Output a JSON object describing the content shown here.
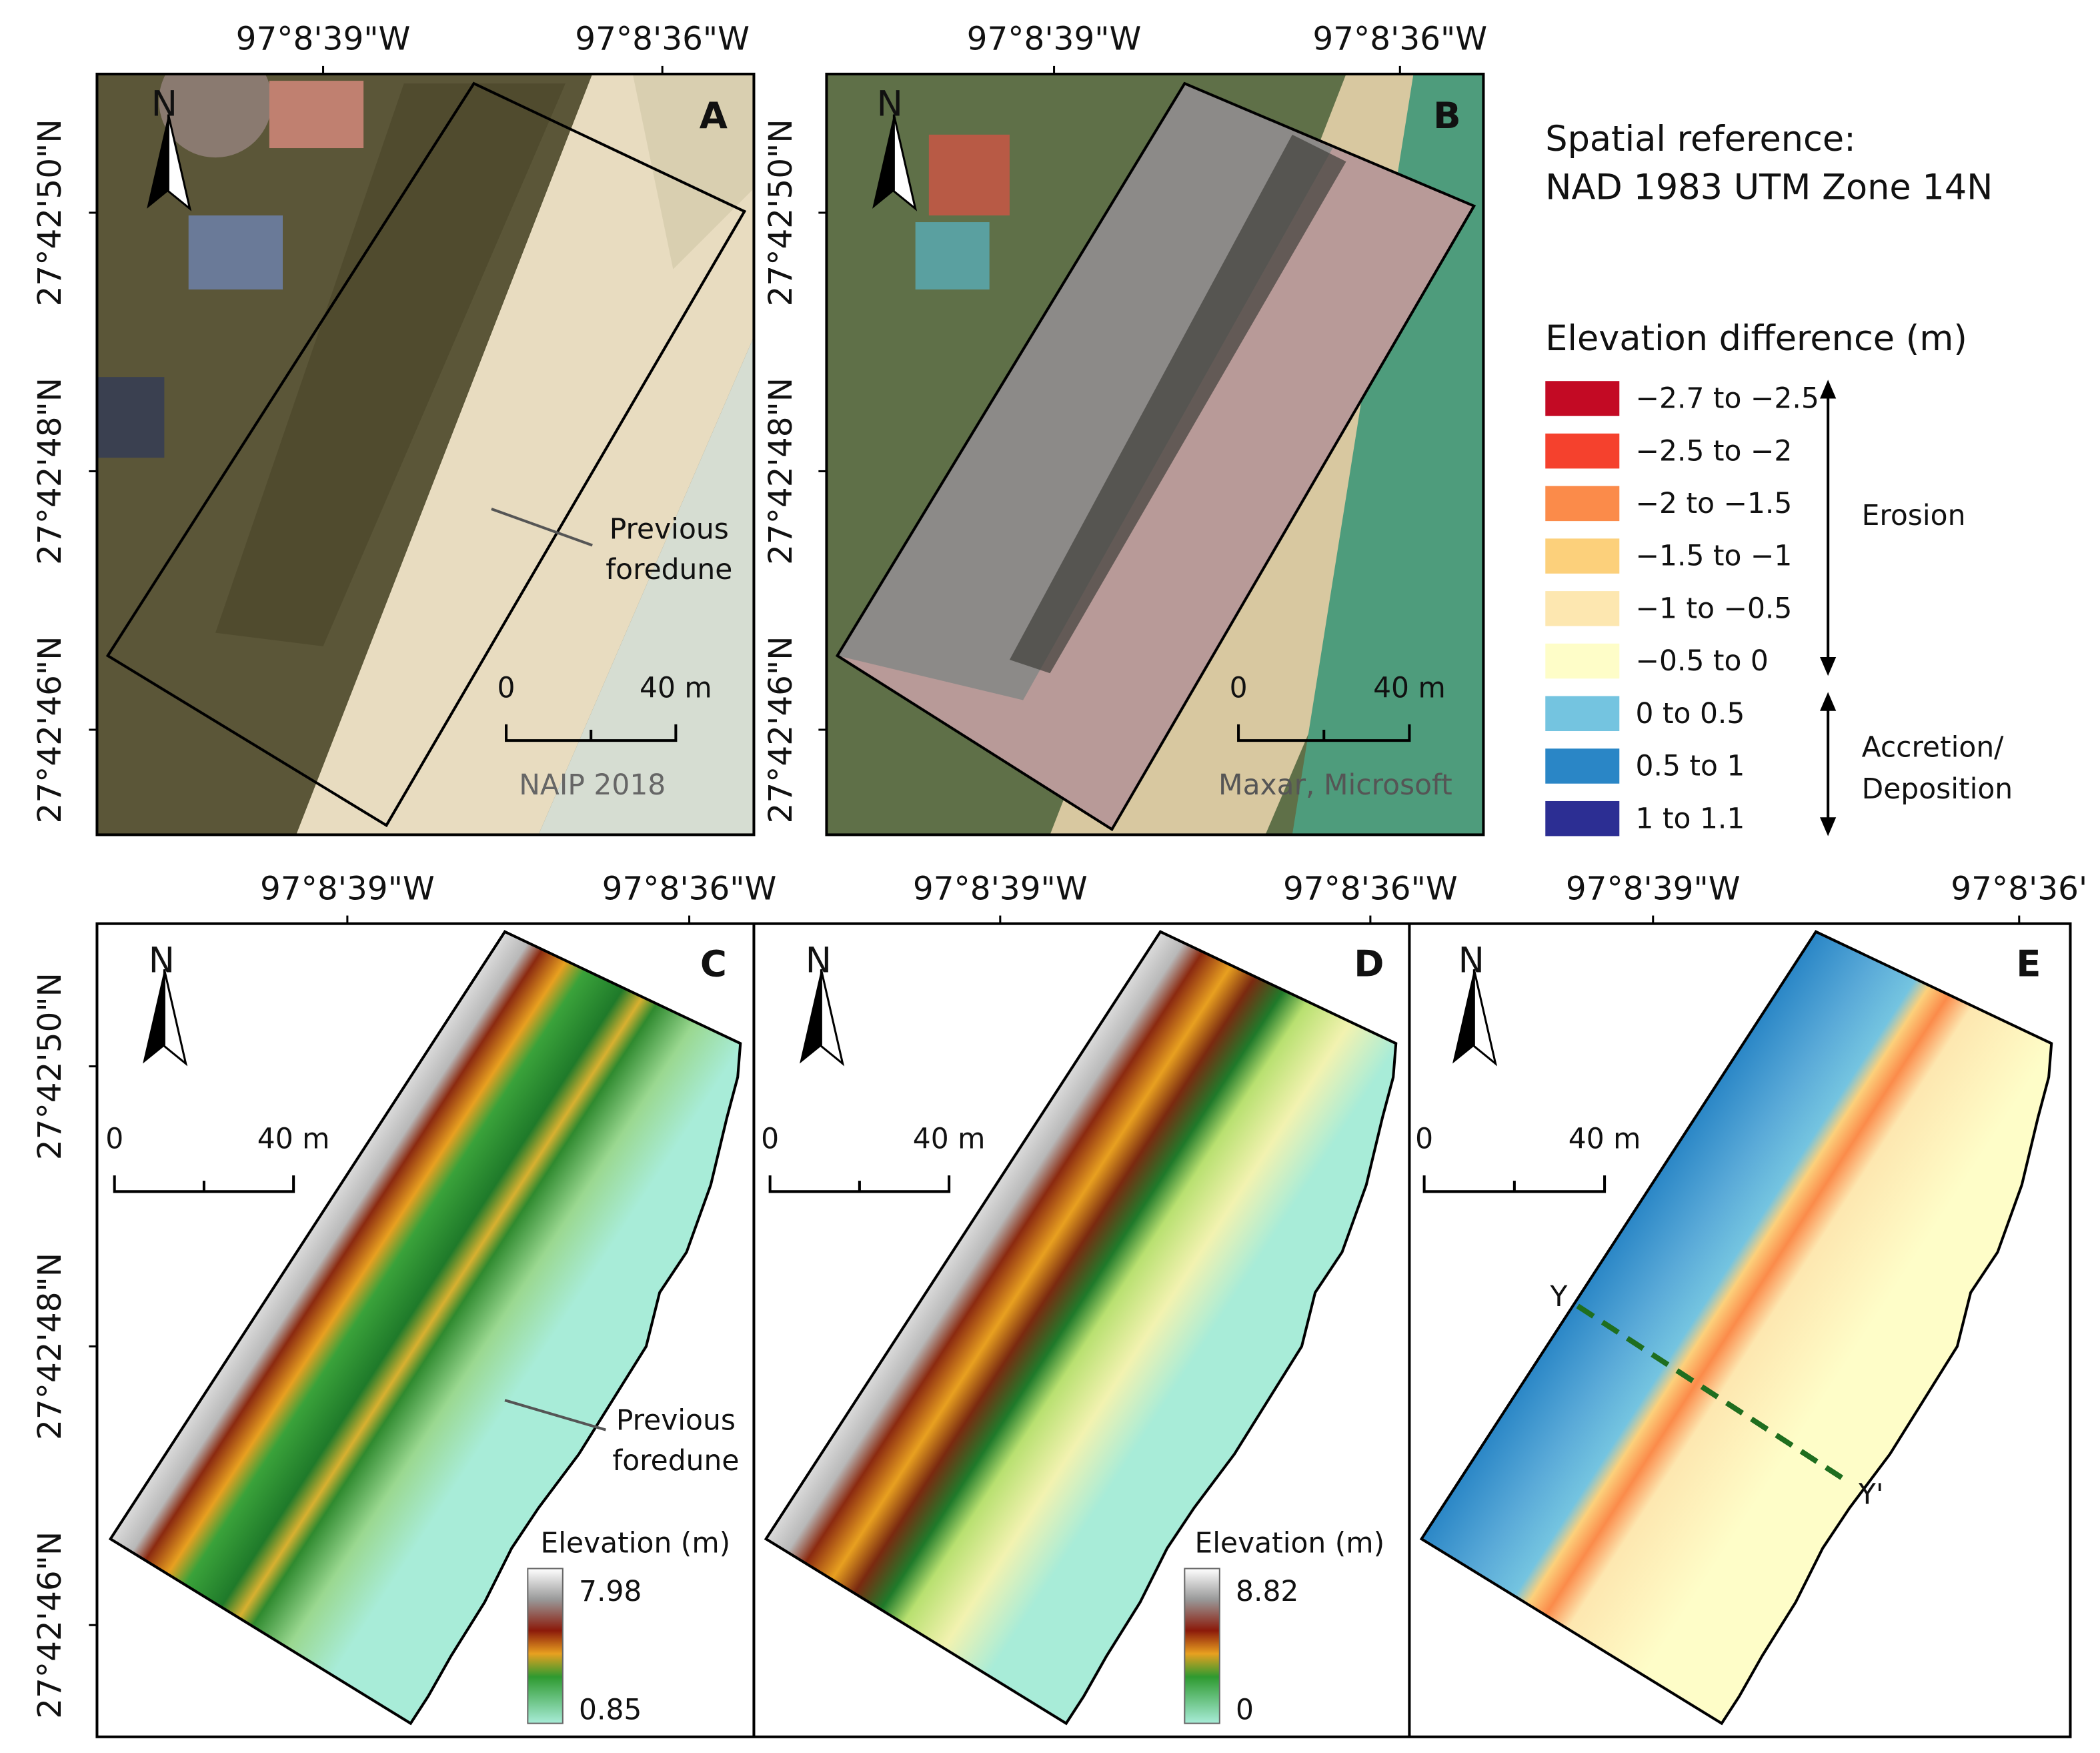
{
  "panel_a": {
    "letter": "A",
    "lon": [
      "97°8'39\"W",
      "97°8'36\"W"
    ],
    "lat": [
      "27°42'50\"N",
      "27°42'48\"N",
      "27°42'46\"N"
    ],
    "north": "N",
    "scale_start": 0,
    "scale_end": "40 m",
    "annotation": [
      "Previous",
      "foredune"
    ],
    "source": "NAIP 2018"
  },
  "panel_b": {
    "letter": "B",
    "lon": [
      "97°8'39\"W",
      "97°8'36\"W"
    ],
    "lat": [
      "27°42'50\"N",
      "27°42'48\"N",
      "27°42'46\"N"
    ],
    "north": "N",
    "scale_start": 0,
    "scale_end": "40 m",
    "source": "Maxar, Microsoft"
  },
  "spatial_reference": [
    "Spatial reference:",
    "NAD 1983 UTM Zone 14N"
  ],
  "legend": {
    "title": "Elevation difference (m)",
    "items": [
      {
        "label": "−2.7 to −2.5",
        "color": "#c30a24"
      },
      {
        "label": "−2.5 to −2",
        "color": "#f5412d"
      },
      {
        "label": "−2 to −1.5",
        "color": "#fb8b4a"
      },
      {
        "label": "−1.5 to −1",
        "color": "#fcd07b"
      },
      {
        "label": "−1 to −0.5",
        "color": "#fde7b0"
      },
      {
        "label": "−0.5 to 0",
        "color": "#fefdc8"
      },
      {
        "label": "0 to 0.5",
        "color": "#74c4e0"
      },
      {
        "label": "0.5 to 1",
        "color": "#2a86c6"
      },
      {
        "label": "1 to 1.1",
        "color": "#2c2e93"
      }
    ],
    "erosion": "Erosion",
    "accretion": [
      "Accretion/",
      "Deposition"
    ]
  },
  "panel_c": {
    "letter": "C",
    "lon": [
      "97°8'39\"W",
      "97°8'36\"W"
    ],
    "lat": [
      "27°42'50\"N",
      "27°42'48\"N",
      "27°42'46\"N"
    ],
    "north": "N",
    "scale_start": 0,
    "scale_end": "40 m",
    "annotation": [
      "Previous",
      "foredune"
    ],
    "elevation_title": "Elevation (m)",
    "elevation_max": 7.98,
    "elevation_min": 0.85
  },
  "panel_d": {
    "letter": "D",
    "lon": [
      "97°8'39\"W",
      "97°8'36\"W"
    ],
    "north": "N",
    "scale_start": 0,
    "scale_end": "40 m",
    "elevation_title": "Elevation (m)",
    "elevation_max": 8.82,
    "elevation_min": 0
  },
  "panel_e": {
    "letter": "E",
    "lon": [
      "97°8'39\"W",
      "97°8'36'"
    ],
    "north": "N",
    "scale_start": 0,
    "scale_end": "40 m",
    "profile": [
      "Y",
      "Y'"
    ]
  }
}
